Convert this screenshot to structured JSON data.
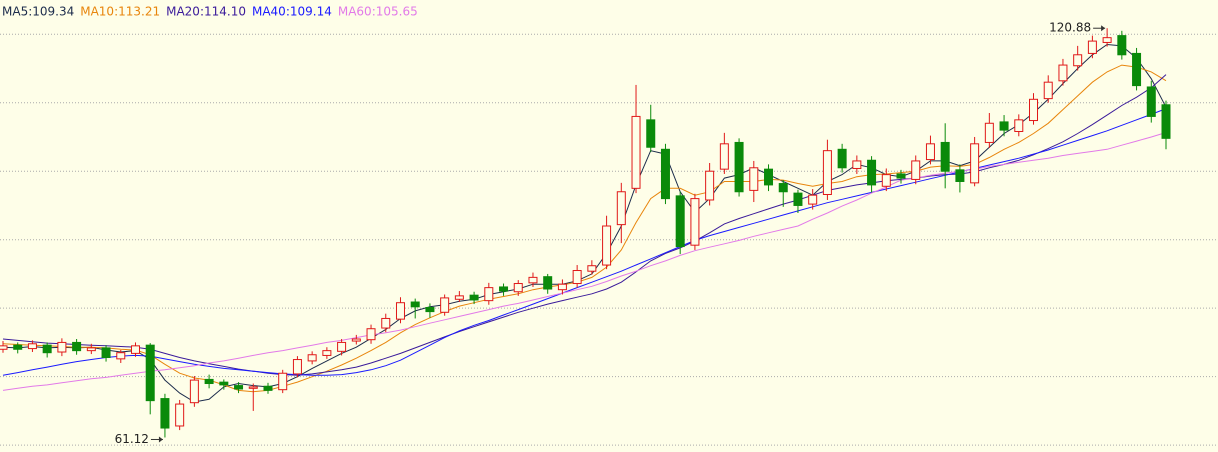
{
  "chart_data": {
    "type": "candlestick",
    "ylim": [
      59,
      125
    ],
    "grid_values": [
      60,
      70,
      80,
      90,
      100,
      110,
      120
    ],
    "up_color": "#e01818",
    "down_color": "#0a8a0a",
    "open": [
      74,
      74.6,
      74.1,
      74.6,
      73.6,
      75,
      73.8,
      74.2,
      72.6,
      73.4,
      74.6,
      66.8,
      62.8,
      66.2,
      69.6,
      69.2,
      68.7,
      68.3,
      68.6,
      68.1,
      70.4,
      72.3,
      73.1,
      73.7,
      75.2,
      75.4,
      77.1,
      78.4,
      80.9,
      80.1,
      79.4,
      81.3,
      81.9,
      81.1,
      83.1,
      82.4,
      83.7,
      84.6,
      82.7,
      83.6,
      85.4,
      86.3,
      92.2,
      97.5,
      107.5,
      103.2,
      96.4,
      89.2,
      95.8,
      100.3,
      104.2,
      97.2,
      100.3,
      98.2,
      96.8,
      95.2,
      96.6,
      103.2,
      100.4,
      101.6,
      97.8,
      99.6,
      98.8,
      101.7,
      104.2,
      100.2,
      98.3,
      104.2,
      107.2,
      105.8,
      107.4,
      110.6,
      113.2,
      115.4,
      117.2,
      118.8,
      119.8,
      117.2,
      112.3,
      109.7
    ],
    "high": [
      75.2,
      75,
      75.3,
      75,
      75.6,
      75.5,
      74.8,
      74.6,
      73.9,
      75,
      74.9,
      67.5,
      66.6,
      70.1,
      70.3,
      69.6,
      69.2,
      69,
      69.1,
      71,
      73,
      73.7,
      74.3,
      75.5,
      76.1,
      77.6,
      79.2,
      81.6,
      81.4,
      80.7,
      82,
      82.5,
      82.4,
      83.7,
      83.6,
      84.1,
      85.2,
      85,
      84.2,
      86.3,
      87,
      93.5,
      98.3,
      112.6,
      109.7,
      104,
      97,
      96.7,
      101.2,
      105.6,
      104.8,
      101.5,
      101,
      98.7,
      97.3,
      97.4,
      104.6,
      104,
      102.3,
      102.2,
      100.4,
      100.2,
      102.3,
      105.2,
      107,
      101,
      105,
      108.5,
      108.2,
      108.3,
      111.4,
      114,
      116.4,
      118.3,
      119.8,
      120.88,
      120.5,
      118,
      113.2,
      110.3
    ],
    "low": [
      73.5,
      73.4,
      73.6,
      72.8,
      73,
      73.2,
      73.3,
      72.2,
      72,
      72.9,
      64.5,
      61.12,
      62.2,
      65.6,
      68.3,
      68.1,
      67.6,
      65,
      67.5,
      67.6,
      69.9,
      71.8,
      72.6,
      73.1,
      74.7,
      74.8,
      76.5,
      77.8,
      78.5,
      78.6,
      78.9,
      80.9,
      80.6,
      80.5,
      81.8,
      81.8,
      83.1,
      82.1,
      82,
      83,
      84.9,
      85.7,
      89.5,
      96.8,
      102.8,
      95.2,
      87.9,
      88.5,
      95,
      99.6,
      96.3,
      95.5,
      97.1,
      94.8,
      93.9,
      94.4,
      95.8,
      99.8,
      99.6,
      96.9,
      97.1,
      98.2,
      98.1,
      101,
      97.5,
      96.9,
      97.8,
      103.4,
      105.1,
      105.1,
      106.8,
      110,
      112.5,
      114.7,
      116.5,
      118.2,
      116.3,
      111.8,
      107.1,
      103.2
    ],
    "close": [
      74.5,
      74,
      74.8,
      73.5,
      75,
      73.8,
      74.2,
      72.8,
      73.5,
      74.5,
      66.5,
      62.5,
      66,
      69.5,
      69,
      68.8,
      68.2,
      68.5,
      68,
      70.5,
      72.5,
      73.2,
      73.8,
      75,
      75.5,
      77,
      78.5,
      80.8,
      80.2,
      79.5,
      81.5,
      81.8,
      81.2,
      83,
      82.5,
      83.6,
      84.5,
      82.8,
      83.5,
      85.5,
      86.2,
      92,
      97,
      108,
      103.5,
      96,
      89,
      96,
      100,
      104,
      97,
      100.5,
      98,
      97,
      95,
      96.5,
      103,
      100.5,
      101.5,
      98,
      99.5,
      99,
      101.5,
      104,
      100,
      98.5,
      104,
      107,
      106,
      107.5,
      110.5,
      113,
      115.5,
      117,
      119,
      119.5,
      117,
      112.5,
      108,
      104.8
    ],
    "series": [
      {
        "name": "MA5:109.34",
        "color": "#1c2c4c",
        "values": [
          74.3,
          74.2,
          74.4,
          74.2,
          74.3,
          74.2,
          74.3,
          73.9,
          73.6,
          73.8,
          72.5,
          69.5,
          67.6,
          66.3,
          66.7,
          68.5,
          69,
          68.7,
          68.5,
          69,
          70,
          71.2,
          72.3,
          73.4,
          74.3,
          75.6,
          76.9,
          78.5,
          79.6,
          80.2,
          80.5,
          81,
          81.3,
          82,
          82.4,
          82.8,
          83.5,
          83.5,
          83.5,
          84,
          85,
          88,
          92,
          98,
          103,
          102.5,
          97,
          94,
          96,
          99,
          99.5,
          100.5,
          99.5,
          98.5,
          97.5,
          96.5,
          98.5,
          99.5,
          101,
          100.5,
          99.5,
          99.2,
          100,
          101.5,
          101.5,
          100.8,
          101.5,
          103.5,
          105.5,
          106.8,
          108.5,
          110.5,
          112.8,
          115,
          117,
          118.5,
          118.3,
          116.5,
          113.5,
          109.34
        ]
      },
      {
        "name": "MA10:113.21",
        "color": "#e8850c",
        "values": [
          74.8,
          74.7,
          74.6,
          74.5,
          74.4,
          74.3,
          74.3,
          74.2,
          74,
          73.9,
          73.2,
          71.8,
          70.5,
          69.8,
          69.5,
          68.8,
          68,
          67.8,
          68,
          68.6,
          69.2,
          70,
          70.8,
          71.7,
          72.7,
          73.8,
          75,
          76.4,
          77.6,
          78.6,
          79.5,
          80.3,
          80.8,
          81.3,
          81.7,
          82.1,
          82.7,
          83.1,
          83.4,
          83.8,
          84.5,
          86,
          88.5,
          92.5,
          96,
          97.5,
          97.5,
          96.5,
          97,
          98.5,
          98.5,
          98.5,
          98.8,
          98.7,
          98.2,
          97.8,
          98.2,
          98.5,
          99.2,
          99.5,
          99.6,
          99.8,
          100,
          100.6,
          100.8,
          100.7,
          101,
          102,
          103.2,
          104.2,
          105.5,
          107,
          109,
          111,
          113,
          114.5,
          115.5,
          115.2,
          114.5,
          113.21
        ]
      },
      {
        "name": "MA20:114.10",
        "color": "#3a1a9a",
        "values": [
          75.5,
          75.3,
          75.1,
          74.9,
          74.8,
          74.7,
          74.6,
          74.5,
          74.4,
          74.3,
          74,
          73.4,
          72.8,
          72.3,
          71.9,
          71.5,
          71.1,
          70.8,
          70.5,
          70.3,
          70.2,
          70.4,
          70.7,
          71,
          71.4,
          72,
          72.7,
          73.4,
          74.2,
          75,
          75.8,
          76.6,
          77.3,
          78,
          78.7,
          79.4,
          80,
          80.6,
          81.1,
          81.6,
          82.1,
          82.8,
          83.8,
          85.3,
          86.9,
          88,
          88.8,
          89.8,
          91,
          92.3,
          93.1,
          93.8,
          94.5,
          95.2,
          95.8,
          96.5,
          97.2,
          97.6,
          98,
          98.3,
          98.6,
          98.8,
          99,
          99.3,
          99.5,
          99.6,
          99.9,
          100.5,
          101,
          101.6,
          102.4,
          103.3,
          104.3,
          105.5,
          106.8,
          108.2,
          109.6,
          110.8,
          112.2,
          114.1
        ]
      },
      {
        "name": "MA40:109.14",
        "color": "#1a1aff",
        "values": [
          70.2,
          70.6,
          71,
          71.4,
          71.8,
          72.2,
          72.5,
          72.8,
          73,
          73.1,
          73,
          72.6,
          72.2,
          71.8,
          71.5,
          71.2,
          71,
          70.8,
          70.6,
          70.4,
          70.3,
          70.2,
          70.2,
          70.3,
          70.6,
          71,
          71.6,
          72.4,
          73.5,
          74.6,
          75.7,
          76.7,
          77.5,
          78.2,
          79,
          79.8,
          80.6,
          81.4,
          82.2,
          83,
          83.8,
          84.6,
          85.4,
          86.3,
          87.2,
          88.1,
          89,
          89.9,
          90.6,
          91.2,
          91.8,
          92.4,
          93,
          93.6,
          94.2,
          94.8,
          95.4,
          95.9,
          96.4,
          96.9,
          97.4,
          97.9,
          98.4,
          98.9,
          99.4,
          99.9,
          100.4,
          100.9,
          101.4,
          101.9,
          102.5,
          103.1,
          103.8,
          104.5,
          105.2,
          105.9,
          106.7,
          107.5,
          108.3,
          109.14
        ]
      },
      {
        "name": "MA60:105.65",
        "color": "#e27ae8",
        "values": [
          68,
          68.3,
          68.6,
          68.8,
          69.1,
          69.4,
          69.7,
          69.9,
          70.2,
          70.5,
          70.8,
          71,
          71.3,
          71.6,
          72,
          72.3,
          72.7,
          73.1,
          73.5,
          73.8,
          74.2,
          74.6,
          75,
          75.3,
          75.7,
          76.1,
          76.4,
          76.8,
          77.3,
          77.8,
          78.3,
          78.8,
          79.3,
          79.8,
          80.3,
          80.7,
          81.2,
          81.7,
          82.2,
          82.7,
          83.2,
          83.9,
          84.7,
          85.4,
          86.2,
          86.9,
          87.7,
          88.4,
          88.9,
          89.4,
          89.9,
          90.5,
          91,
          91.5,
          92,
          93,
          93.9,
          94.9,
          95.8,
          96.8,
          97.7,
          98.7,
          99,
          99.4,
          99.7,
          100,
          100.3,
          100.7,
          101,
          101.3,
          101.6,
          101.9,
          102.3,
          102.6,
          102.9,
          103.2,
          103.8,
          104.4,
          105,
          105.65
        ]
      }
    ],
    "annotations": [
      {
        "value": 120.88
      },
      {
        "value": 61.12
      }
    ]
  }
}
